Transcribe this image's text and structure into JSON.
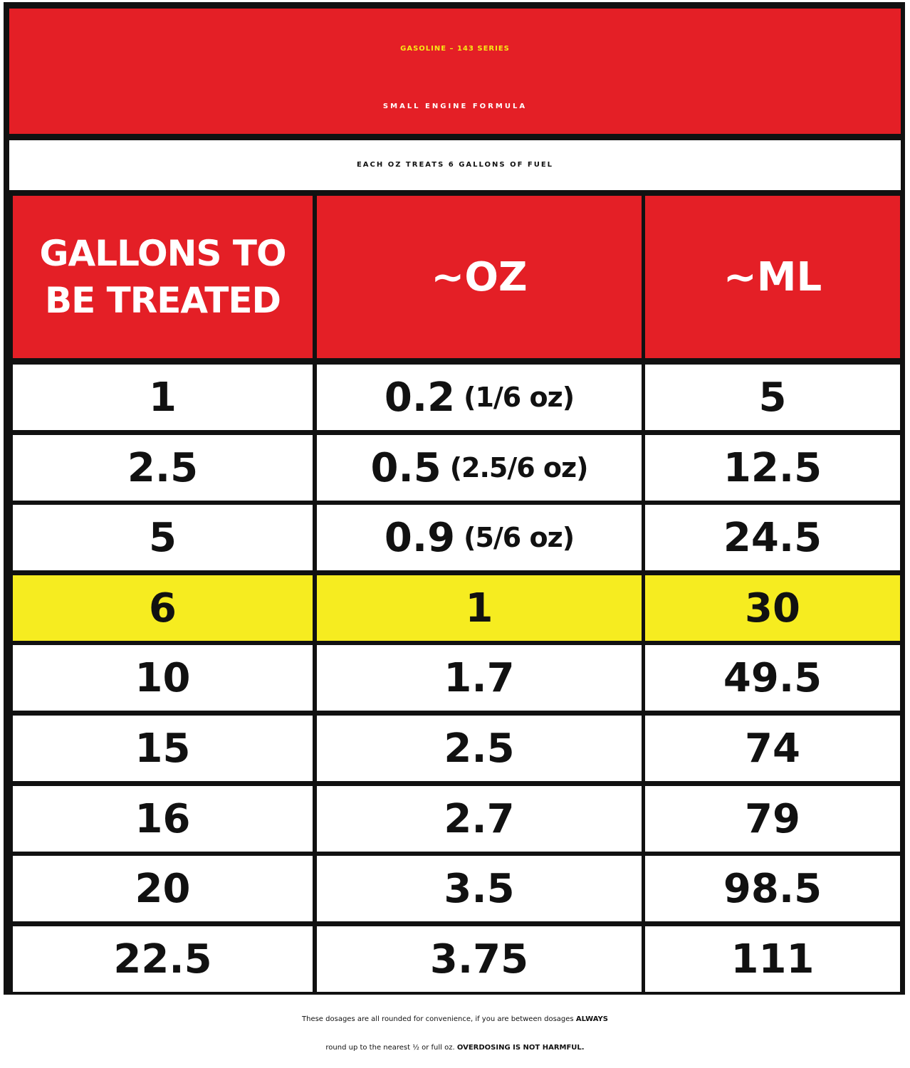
{
  "header": {
    "title_line1": "GASOLINE – 143 SERIES",
    "title_line2": "SMALL ENGINE FORMULA",
    "subtitle": "EACH OZ TREATS 6 GALLONS OF FUEL"
  },
  "table": {
    "columns": {
      "gallons_line1": "GALLONS TO",
      "gallons_line2": "BE TREATED",
      "oz": "~OZ",
      "ml": "~ML"
    },
    "rows": [
      {
        "gallons": "1",
        "oz": "0.2",
        "oz_note": "(1/6 oz)",
        "ml": "5",
        "highlight": false
      },
      {
        "gallons": "2.5",
        "oz": "0.5",
        "oz_note": "(2.5/6 oz)",
        "ml": "12.5",
        "highlight": false
      },
      {
        "gallons": "5",
        "oz": "0.9",
        "oz_note": "(5/6 oz)",
        "ml": "24.5",
        "highlight": false
      },
      {
        "gallons": "6",
        "oz": "1",
        "oz_note": "",
        "ml": "30",
        "highlight": true
      },
      {
        "gallons": "10",
        "oz": "1.7",
        "oz_note": "",
        "ml": "49.5",
        "highlight": false
      },
      {
        "gallons": "15",
        "oz": "2.5",
        "oz_note": "",
        "ml": "74",
        "highlight": false
      },
      {
        "gallons": "16",
        "oz": "2.7",
        "oz_note": "",
        "ml": "79",
        "highlight": false
      },
      {
        "gallons": "20",
        "oz": "3.5",
        "oz_note": "",
        "ml": "98.5",
        "highlight": false
      },
      {
        "gallons": "22.5",
        "oz": "3.75",
        "oz_note": "",
        "ml": "111",
        "highlight": false
      }
    ]
  },
  "footer": {
    "line1_text": "These dosages are all rounded for convenience, if you are between dosages ",
    "line1_bold": "ALWAYS",
    "line2_text": "round up to the nearest ½ or full oz. ",
    "line2_bold": "OVERDOSING IS NOT HARMFUL."
  },
  "colors": {
    "red": "#e41f26",
    "yellow": "#f6ea14",
    "highlight": "#f6ec20"
  }
}
